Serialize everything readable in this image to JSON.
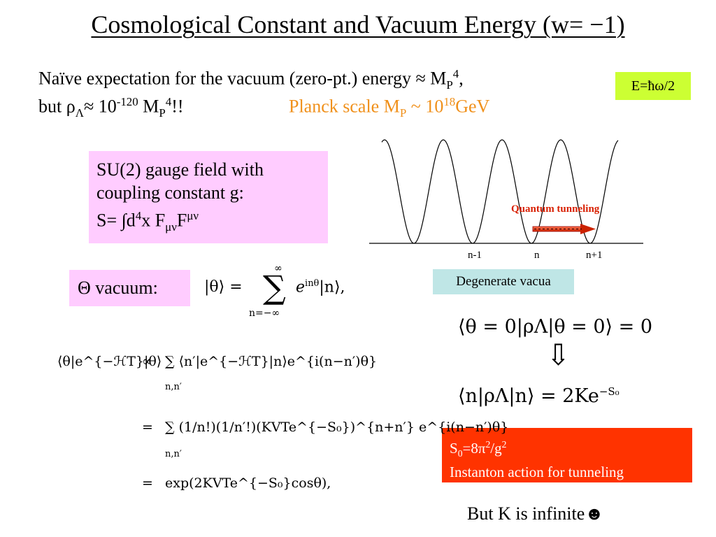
{
  "slide": {
    "title": "Cosmological Constant and Vacuum Energy (w= −1)",
    "line1": {
      "text": "Naïve expectation for the vacuum (zero-pt.) energy ≈ M",
      "sub": "P",
      "sup": "4",
      "tail": ","
    },
    "line2": {
      "pre": "but ρ",
      "sub1": "Λ",
      "mid": "≈ 10",
      "sup1": "-120",
      "m": " M",
      "sub2": "P",
      "sup2": "4",
      "tail": "!!"
    },
    "planck": {
      "pre": "Planck scale M",
      "sub": "P",
      "mid": " ~ 10",
      "sup": "18",
      "tail": "GeV"
    },
    "energy_box": "E=ħω/2",
    "su2_box": {
      "line1": "SU(2) gauge field with",
      "line2": "coupling constant g:",
      "line3_pre": "S= ∫d",
      "line3_sup": "4",
      "line3_mid": "x F",
      "line3_sub": "μν",
      "line3_F": "F",
      "line3_sup2": "μν"
    },
    "theta_box": "Θ vacuum:",
    "theta_eq": {
      "lhs": "|θ⟩ =",
      "sum": "∑",
      "top": "∞",
      "bottom": "n=−∞",
      "rhs": "e",
      "exp": "inθ",
      "tail": "|n⟩,"
    },
    "plot": {
      "tunneling_label": "Quantum tunneling",
      "tick_labels": [
        "n-1",
        "n",
        "n+1"
      ],
      "caption": "Degenerate vacua"
    },
    "eq_rho_zero": "⟨θ = 0|ρΛ|θ = 0⟩ = 0",
    "arrow_down": "⇩",
    "eq_rho_n": "⟨n|ρΛ|n⟩ = 2Ke",
    "eq_rho_n_exp": "−S₀",
    "instanton_box": {
      "pre": "S",
      "sub": "0",
      "mid": "=8π",
      "sup": "2",
      "mid2": "/g",
      "sup2": "2",
      "line2": "Instanton action for tunneling"
    },
    "derivation": {
      "row1_lhs": "⟨θ|e^{−ℋT}|θ⟩",
      "row1_op": "∝",
      "row1_rhs": "∑ ⟨n′|e^{−ℋT}|n⟩e^{i(n−n′)θ}",
      "row1_under": "n,n′",
      "row2_op": "=",
      "row2_rhs": "∑ (1/n!)(1/n′!)(KVTe^{−S₀})^{n+n′} e^{i(n−n′)θ}",
      "row2_under": "n,n′",
      "row3_op": "=",
      "row3_rhs": "exp(2KVTe^{−S₀}cosθ),"
    },
    "bottom_note": "But K is infinite☻"
  }
}
